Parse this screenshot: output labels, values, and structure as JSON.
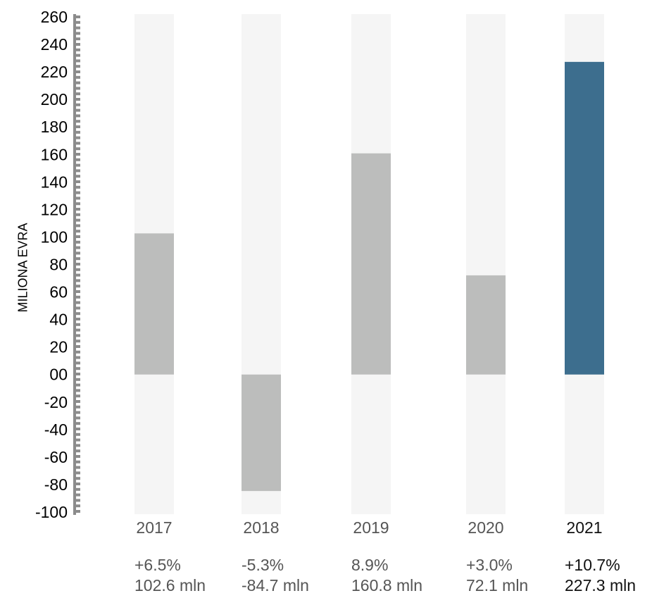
{
  "chart_data": {
    "type": "bar",
    "ylabel": "MILIONA EVRA",
    "ylim": [
      -100,
      260
    ],
    "yticks": [
      "260",
      "240",
      "220",
      "200",
      "180",
      "160",
      "140",
      "120",
      "100",
      "80",
      "60",
      "40",
      "20",
      "00",
      "-20",
      "-40",
      "-60",
      "-80",
      "-100"
    ],
    "categories": [
      "2017",
      "2018",
      "2019",
      "2020",
      "2021"
    ],
    "values": [
      102.6,
      -84.7,
      160.8,
      72.1,
      227.3
    ],
    "change_labels": [
      "+6.5%",
      "-5.3%",
      "8.9%",
      "+3.0%",
      "+10.7%"
    ],
    "value_labels": [
      "102.6 mln",
      "-84.7 mln",
      "160.8 mln",
      "72.1 mln",
      "227.3 mln"
    ],
    "highlight_index": 4,
    "colors": {
      "bar": "#bcbdbc",
      "highlight": "#3d6e8e",
      "background_bar": "#f5f5f5",
      "axis": "#8c8c8c"
    }
  }
}
